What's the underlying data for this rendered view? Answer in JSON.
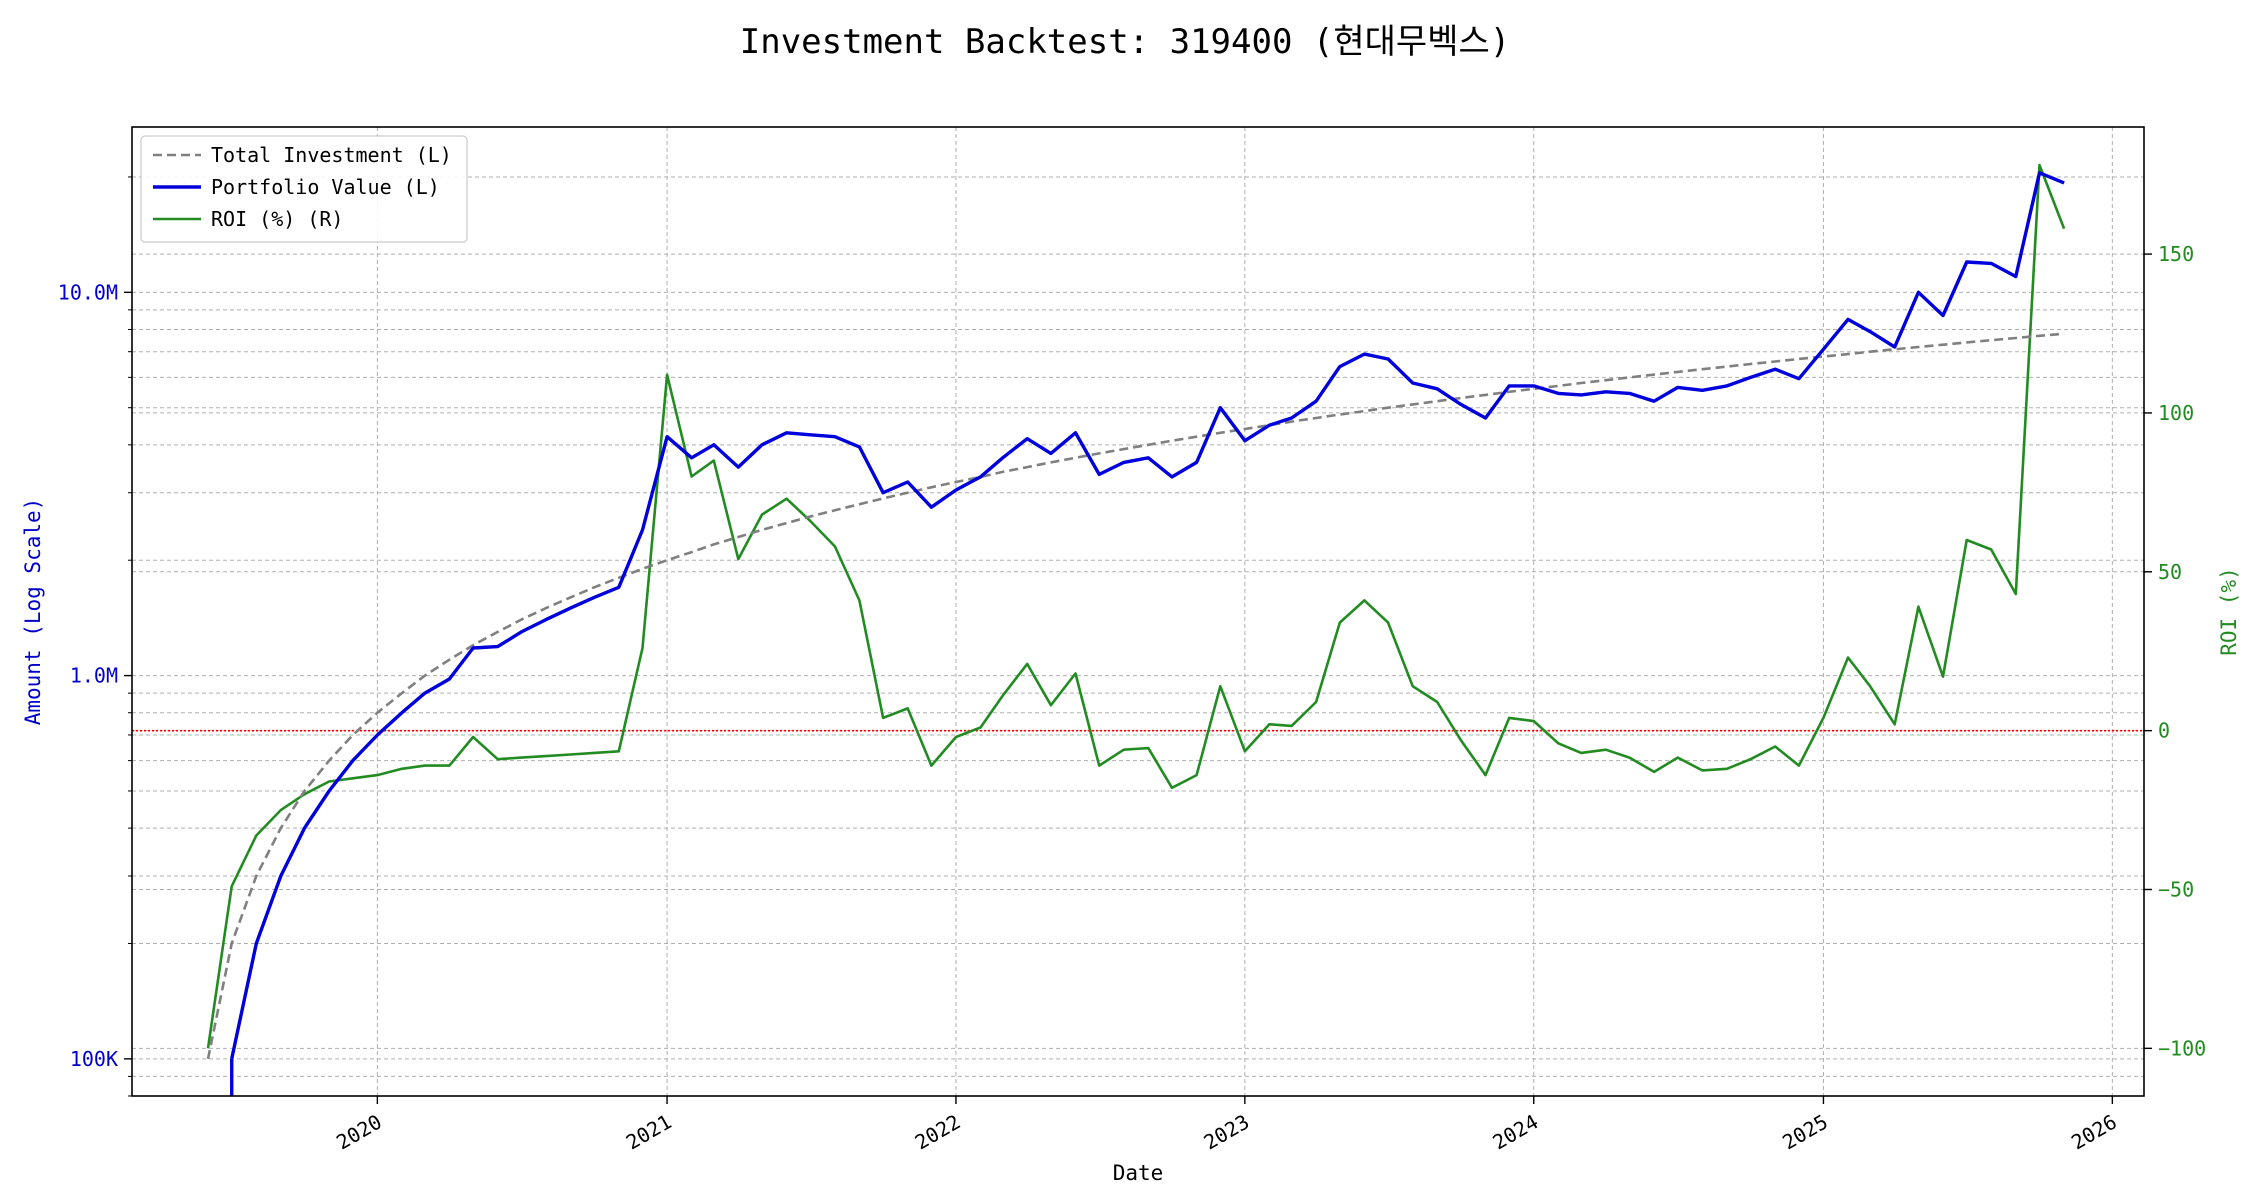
{
  "chart_data": {
    "type": "line",
    "title": "Investment Backtest: 319400 (현대무벡스)",
    "xlabel": "Date",
    "ylabel_left": "Amount (Log Scale)",
    "ylabel_right": "ROI (%)",
    "y_left_scale": "log",
    "y_left_lim": [
      80000,
      27000000
    ],
    "y_right_lim": [
      -115,
      190
    ],
    "x_lim": [
      "2019-02-25",
      "2026-02-10"
    ],
    "x_ticks": [
      "2020-01-01",
      "2021-01-01",
      "2022-01-01",
      "2023-01-01",
      "2024-01-01",
      "2025-01-01",
      "2026-01-01"
    ],
    "x_tick_labels": [
      "2020",
      "2021",
      "2022",
      "2023",
      "2024",
      "2025",
      "2026"
    ],
    "y_left_ticks": [
      100000,
      1000000,
      10000000
    ],
    "y_left_tick_labels": [
      "100K",
      "1.0M",
      "10.0M"
    ],
    "y_right_ticks": [
      -100,
      -50,
      0,
      50,
      100,
      150
    ],
    "y_right_tick_labels": [
      "−100",
      "−50",
      "0",
      "50",
      "100",
      "150"
    ],
    "grid": true,
    "legend_position": "top-left",
    "zero_line": {
      "axis": "right",
      "value": 0,
      "color": "#ff0000",
      "style": "dotted"
    },
    "dates": [
      "2019-06-01",
      "2019-07-01",
      "2019-08-01",
      "2019-09-01",
      "2019-10-01",
      "2019-11-01",
      "2019-12-01",
      "2020-01-01",
      "2020-02-01",
      "2020-03-01",
      "2020-04-01",
      "2020-05-01",
      "2020-06-01",
      "2020-07-01",
      "2020-08-01",
      "2020-09-01",
      "2020-10-01",
      "2020-11-01",
      "2020-12-01",
      "2021-01-01",
      "2021-02-01",
      "2021-03-01",
      "2021-04-01",
      "2021-05-01",
      "2021-06-01",
      "2021-07-01",
      "2021-08-01",
      "2021-09-01",
      "2021-10-01",
      "2021-11-01",
      "2021-12-01",
      "2022-01-01",
      "2022-02-01",
      "2022-03-01",
      "2022-04-01",
      "2022-05-01",
      "2022-06-01",
      "2022-07-01",
      "2022-08-01",
      "2022-09-01",
      "2022-10-01",
      "2022-11-01",
      "2022-12-01",
      "2023-01-01",
      "2023-02-01",
      "2023-03-01",
      "2023-04-01",
      "2023-05-01",
      "2023-06-01",
      "2023-07-01",
      "2023-08-01",
      "2023-09-01",
      "2023-10-01",
      "2023-11-01",
      "2023-12-01",
      "2024-01-01",
      "2024-02-01",
      "2024-03-01",
      "2024-04-01",
      "2024-05-01",
      "2024-06-01",
      "2024-07-01",
      "2024-08-01",
      "2024-09-01",
      "2024-10-01",
      "2024-11-01",
      "2024-12-01",
      "2025-01-01",
      "2025-02-01",
      "2025-03-01",
      "2025-04-01",
      "2025-05-01",
      "2025-06-01",
      "2025-07-01",
      "2025-08-01",
      "2025-09-01",
      "2025-10-01",
      "2025-11-01"
    ],
    "series": [
      {
        "name": "Total Investment (L)",
        "axis": "left",
        "color": "#808080",
        "style": "dashed",
        "values": [
          100000,
          200000,
          300000,
          400000,
          500000,
          600000,
          700000,
          800000,
          900000,
          1000000,
          1100000,
          1200000,
          1300000,
          1400000,
          1500000,
          1600000,
          1700000,
          1800000,
          1900000,
          2000000,
          2100000,
          2200000,
          2300000,
          2400000,
          2500000,
          2600000,
          2700000,
          2800000,
          2900000,
          3000000,
          3100000,
          3200000,
          3300000,
          3400000,
          3500000,
          3600000,
          3700000,
          3800000,
          3900000,
          4000000,
          4100000,
          4200000,
          4300000,
          4400000,
          4500000,
          4600000,
          4700000,
          4800000,
          4900000,
          5000000,
          5100000,
          5200000,
          5300000,
          5400000,
          5500000,
          5600000,
          5700000,
          5800000,
          5900000,
          6000000,
          6100000,
          6200000,
          6300000,
          6400000,
          6500000,
          6600000,
          6700000,
          6800000,
          6900000,
          7000000,
          7100000,
          7200000,
          7300000,
          7400000,
          7500000,
          7600000,
          7700000,
          7800000
        ]
      },
      {
        "name": "Portfolio Value (L)",
        "axis": "left",
        "color": "#0000dd",
        "style": "solid",
        "values": [
          null,
          100000,
          200000,
          300000,
          400000,
          500000,
          600000,
          700000,
          800000,
          900000,
          980000,
          1180000,
          1190000,
          1300000,
          1400000,
          1500000,
          1600000,
          1700000,
          2400000,
          4200000,
          3700000,
          4000000,
          3500000,
          4000000,
          4300000,
          4250000,
          4200000,
          3950000,
          3000000,
          3200000,
          2750000,
          3050000,
          3300000,
          3700000,
          4150000,
          3800000,
          4300000,
          3350000,
          3600000,
          3700000,
          3300000,
          3600000,
          5000000,
          4100000,
          4500000,
          4700000,
          5200000,
          6400000,
          6900000,
          6700000,
          5800000,
          5600000,
          5100000,
          4700000,
          5700000,
          5700000,
          5450000,
          5400000,
          5500000,
          5450000,
          5200000,
          5650000,
          5550000,
          5700000,
          6000000,
          6300000,
          5950000,
          7100000,
          8500000,
          7900000,
          7200000,
          10000000,
          8700000,
          12000000,
          11900000,
          11000000,
          20500000,
          19300000
        ]
      },
      {
        "name": "ROI (%) (R)",
        "axis": "right",
        "color": "#228b22",
        "style": "solid",
        "values": [
          -100,
          -49,
          -33,
          -25,
          -20,
          -16,
          -15,
          -14,
          -12,
          -11,
          -11,
          -2,
          -9,
          -8.5,
          -8,
          -7.5,
          -7,
          -6.5,
          26,
          112,
          80,
          85,
          54,
          68,
          73,
          66,
          58,
          41,
          4,
          7,
          -11,
          -2,
          1,
          11,
          21,
          8,
          18,
          -11,
          -6,
          -5.5,
          -18,
          -14,
          14,
          -6.5,
          2,
          1.5,
          9,
          34,
          41,
          34,
          14,
          9,
          -3,
          -14,
          4,
          3,
          -4,
          -7,
          -6,
          -8.5,
          -13,
          -8.5,
          -12.5,
          -12,
          -9,
          -5,
          -11,
          4,
          23,
          14,
          2,
          39,
          17,
          60,
          57,
          43,
          178,
          158
        ]
      }
    ]
  }
}
